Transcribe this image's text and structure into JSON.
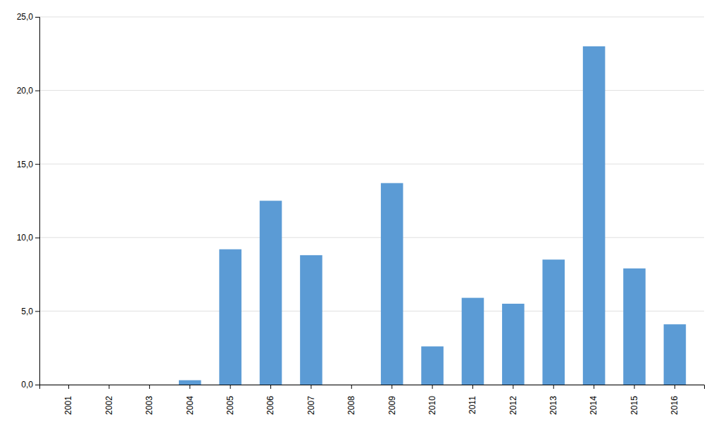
{
  "chart_data": {
    "type": "bar",
    "categories": [
      "2001",
      "2002",
      "2003",
      "2004",
      "2005",
      "2006",
      "2007",
      "2008",
      "2009",
      "2010",
      "2011",
      "2012",
      "2013",
      "2014",
      "2015",
      "2016"
    ],
    "values": [
      0,
      0,
      0,
      0.3,
      9.2,
      12.5,
      8.8,
      0,
      13.7,
      2.6,
      5.9,
      5.5,
      8.5,
      23.0,
      7.9,
      4.1
    ],
    "color": "#5B9BD5",
    "ylim": [
      0,
      25
    ],
    "yticks": [
      {
        "value": 0.0,
        "label": "0,0"
      },
      {
        "value": 5.0,
        "label": "5,0"
      },
      {
        "value": 10.0,
        "label": "10,0"
      },
      {
        "value": 15.0,
        "label": "15,0"
      },
      {
        "value": 20.0,
        "label": "20,0"
      },
      {
        "value": 25.0,
        "label": "25,0"
      }
    ],
    "grid": true
  }
}
